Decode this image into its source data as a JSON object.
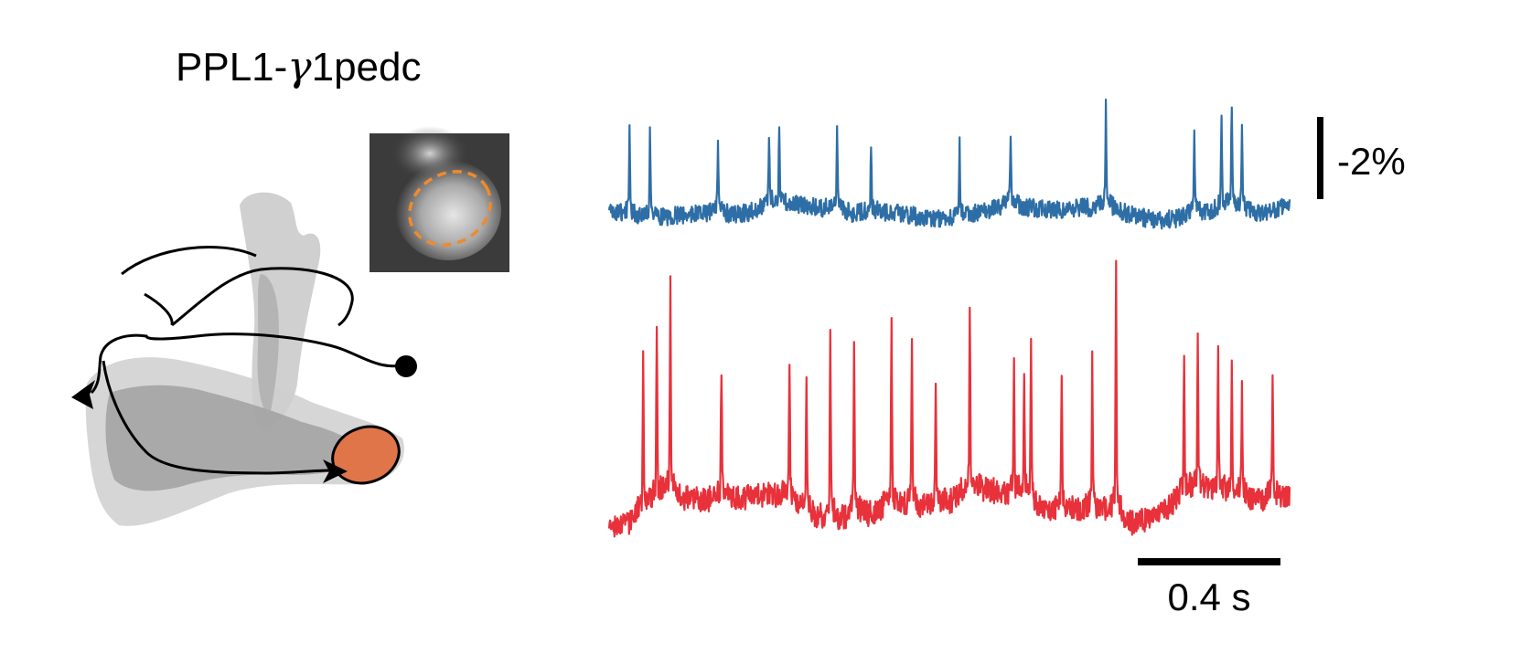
{
  "figure": {
    "title_prefix": "PPL1-",
    "title_greek": "γ",
    "title_suffix": "1pedc",
    "scale_bar_y_label": "-2%",
    "scale_bar_x_label": "0.4 s"
  },
  "colors": {
    "trace_top": "#2e6ea6",
    "trace_bottom": "#e8313a",
    "roi_fill": "#e0754a",
    "roi_outline_inset": "#f08a2c",
    "tissue_light": "#c8c8c8",
    "tissue_dark": "#8a8a8a"
  },
  "icons": {
    "neuron_soma": "soma-dot-icon",
    "axon_arrow": "arrowhead-icon"
  },
  "chart_data": {
    "type": "line",
    "series": [
      {
        "color": "#2e6ea6",
        "spikes": [
          {
            "t": 0.03,
            "a": 1.0
          },
          {
            "t": 0.06,
            "a": 0.9
          },
          {
            "t": 0.16,
            "a": 0.85
          },
          {
            "t": 0.235,
            "a": 0.8
          },
          {
            "t": 0.25,
            "a": 0.8
          },
          {
            "t": 0.335,
            "a": 0.8
          },
          {
            "t": 0.385,
            "a": 0.7
          },
          {
            "t": 0.515,
            "a": 0.75
          },
          {
            "t": 0.59,
            "a": 0.8
          },
          {
            "t": 0.73,
            "a": 1.05
          },
          {
            "t": 0.86,
            "a": 0.85
          },
          {
            "t": 0.9,
            "a": 1.0
          },
          {
            "t": 0.915,
            "a": 1.15
          },
          {
            "t": 0.93,
            "a": 0.85
          }
        ]
      },
      {
        "color": "#e8313a",
        "spikes": [
          {
            "t": 0.05,
            "a": 0.75
          },
          {
            "t": 0.07,
            "a": 0.8
          },
          {
            "t": 0.09,
            "a": 0.95
          },
          {
            "t": 0.165,
            "a": 0.6
          },
          {
            "t": 0.265,
            "a": 0.6
          },
          {
            "t": 0.29,
            "a": 0.55
          },
          {
            "t": 0.325,
            "a": 0.85
          },
          {
            "t": 0.36,
            "a": 0.8
          },
          {
            "t": 0.415,
            "a": 0.85
          },
          {
            "t": 0.445,
            "a": 0.8
          },
          {
            "t": 0.48,
            "a": 0.55
          },
          {
            "t": 0.53,
            "a": 0.8
          },
          {
            "t": 0.595,
            "a": 0.6
          },
          {
            "t": 0.61,
            "a": 0.55
          },
          {
            "t": 0.62,
            "a": 0.7
          },
          {
            "t": 0.665,
            "a": 0.6
          },
          {
            "t": 0.71,
            "a": 0.65
          },
          {
            "t": 0.745,
            "a": 1.1
          },
          {
            "t": 0.845,
            "a": 0.6
          },
          {
            "t": 0.865,
            "a": 0.7
          },
          {
            "t": 0.895,
            "a": 0.6
          },
          {
            "t": 0.915,
            "a": 0.55
          },
          {
            "t": 0.93,
            "a": 0.5
          },
          {
            "t": 0.975,
            "a": 0.55
          }
        ]
      }
    ]
  }
}
